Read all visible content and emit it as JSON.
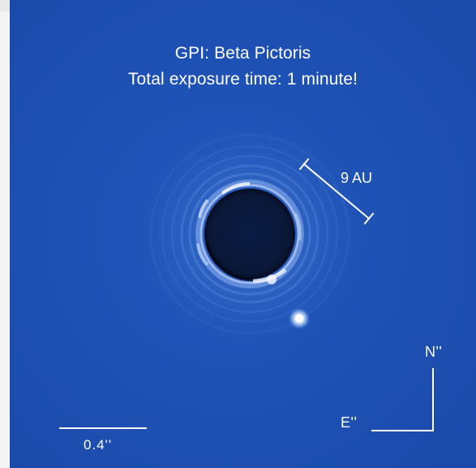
{
  "image": {
    "title_line1": "GPI: Beta Pictoris",
    "title_line2": "Total exposure time: 1 minute!",
    "distance_scale_label": "9 AU",
    "angular_scale_label": "0.4''",
    "compass_north_label": "N''",
    "compass_east_label": "E''"
  },
  "colors": {
    "background": "#1d4fb1",
    "text": "#ffffff",
    "mask": "#06112e",
    "planet": "#ffffff"
  }
}
